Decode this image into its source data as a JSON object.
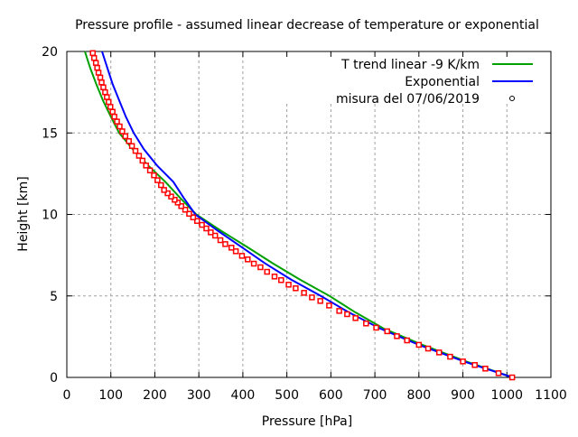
{
  "chart_data": {
    "type": "line",
    "title": "Pressure profile - assumed linear decrease of temperature or exponential",
    "xlabel": "Pressure [hPa]",
    "ylabel": "Height [km]",
    "xlim": [
      0,
      1100
    ],
    "ylim": [
      0,
      20
    ],
    "xticks": [
      "0",
      "100",
      "200",
      "300",
      "400",
      "500",
      "600",
      "700",
      "800",
      "900",
      "1000",
      "1100"
    ],
    "yticks": [
      "0",
      "5",
      "10",
      "15",
      "20"
    ],
    "grid": true,
    "legend_position": "top-right",
    "series": [
      {
        "name": "T trend linear -9 K/km",
        "style": "line",
        "color": "#00a000",
        "points": [
          [
            1013,
            0
          ],
          [
            905,
            1
          ],
          [
            808,
            2
          ],
          [
            720,
            3
          ],
          [
            655,
            4
          ],
          [
            597,
            5
          ],
          [
            530,
            6
          ],
          [
            468,
            7
          ],
          [
            410,
            8
          ],
          [
            350,
            9
          ],
          [
            294,
            10
          ],
          [
            258,
            11
          ],
          [
            224,
            12
          ],
          [
            185,
            13
          ],
          [
            150,
            14
          ],
          [
            119,
            15
          ],
          [
            100,
            16
          ],
          [
            82,
            17
          ],
          [
            67,
            18
          ],
          [
            53,
            19
          ],
          [
            41,
            20
          ]
        ]
      },
      {
        "name": "Exponential",
        "style": "line",
        "color": "#0000ff",
        "points": [
          [
            1013,
            0
          ],
          [
            900,
            1
          ],
          [
            800,
            2
          ],
          [
            712,
            3
          ],
          [
            640,
            4
          ],
          [
            577,
            5
          ],
          [
            510,
            6
          ],
          [
            450,
            7
          ],
          [
            397,
            8
          ],
          [
            343,
            9
          ],
          [
            292,
            10
          ],
          [
            266,
            11
          ],
          [
            242,
            12
          ],
          [
            205,
            13
          ],
          [
            175,
            14
          ],
          [
            152,
            15
          ],
          [
            134,
            16
          ],
          [
            119,
            17
          ],
          [
            104,
            18
          ],
          [
            92,
            19
          ],
          [
            80,
            20
          ]
        ]
      },
      {
        "name": "misura del 07/06/2019",
        "style": "points",
        "color": "#ff0000",
        "points": [
          [
            1012,
            0
          ],
          [
            981,
            0.26
          ],
          [
            951,
            0.54
          ],
          [
            927,
            0.76
          ],
          [
            900,
            0.98
          ],
          [
            871,
            1.27
          ],
          [
            846,
            1.53
          ],
          [
            821,
            1.77
          ],
          [
            800,
            2.0
          ],
          [
            773,
            2.27
          ],
          [
            750,
            2.53
          ],
          [
            728,
            2.83
          ],
          [
            703,
            3.05
          ],
          [
            680,
            3.31
          ],
          [
            656,
            3.64
          ],
          [
            637,
            3.88
          ],
          [
            619,
            4.08
          ],
          [
            596,
            4.41
          ],
          [
            576,
            4.69
          ],
          [
            557,
            4.91
          ],
          [
            539,
            5.19
          ],
          [
            520,
            5.47
          ],
          [
            504,
            5.69
          ],
          [
            487,
            5.97
          ],
          [
            472,
            6.19
          ],
          [
            455,
            6.48
          ],
          [
            440,
            6.76
          ],
          [
            425,
            6.98
          ],
          [
            411,
            7.24
          ],
          [
            398,
            7.46
          ],
          [
            384,
            7.74
          ],
          [
            374,
            7.96
          ],
          [
            360,
            8.18
          ],
          [
            349,
            8.42
          ],
          [
            337,
            8.7
          ],
          [
            327,
            8.9
          ],
          [
            317,
            9.14
          ],
          [
            307,
            9.36
          ],
          [
            296,
            9.6
          ],
          [
            287,
            9.82
          ],
          [
            278,
            10.04
          ],
          [
            269,
            10.29
          ],
          [
            260,
            10.51
          ],
          [
            252,
            10.73
          ],
          [
            245,
            10.9
          ],
          [
            237,
            11.1
          ],
          [
            229,
            11.3
          ],
          [
            221,
            11.5
          ],
          [
            214,
            11.8
          ],
          [
            206,
            12.1
          ],
          [
            198,
            12.4
          ],
          [
            189,
            12.7
          ],
          [
            180,
            13.0
          ],
          [
            172,
            13.3
          ],
          [
            164,
            13.6
          ],
          [
            156,
            13.9
          ],
          [
            148,
            14.2
          ],
          [
            141,
            14.5
          ],
          [
            133,
            14.8
          ],
          [
            126,
            15.1
          ],
          [
            120,
            15.4
          ],
          [
            114,
            15.7
          ],
          [
            108,
            16.0
          ],
          [
            104,
            16.3
          ],
          [
            99,
            16.6
          ],
          [
            95,
            16.9
          ],
          [
            91,
            17.2
          ],
          [
            87,
            17.5
          ],
          [
            83,
            17.8
          ],
          [
            79,
            18.1
          ],
          [
            76,
            18.4
          ],
          [
            72,
            18.7
          ],
          [
            69,
            19.0
          ],
          [
            66,
            19.3
          ],
          [
            62,
            19.6
          ],
          [
            59,
            19.9
          ]
        ]
      }
    ]
  }
}
